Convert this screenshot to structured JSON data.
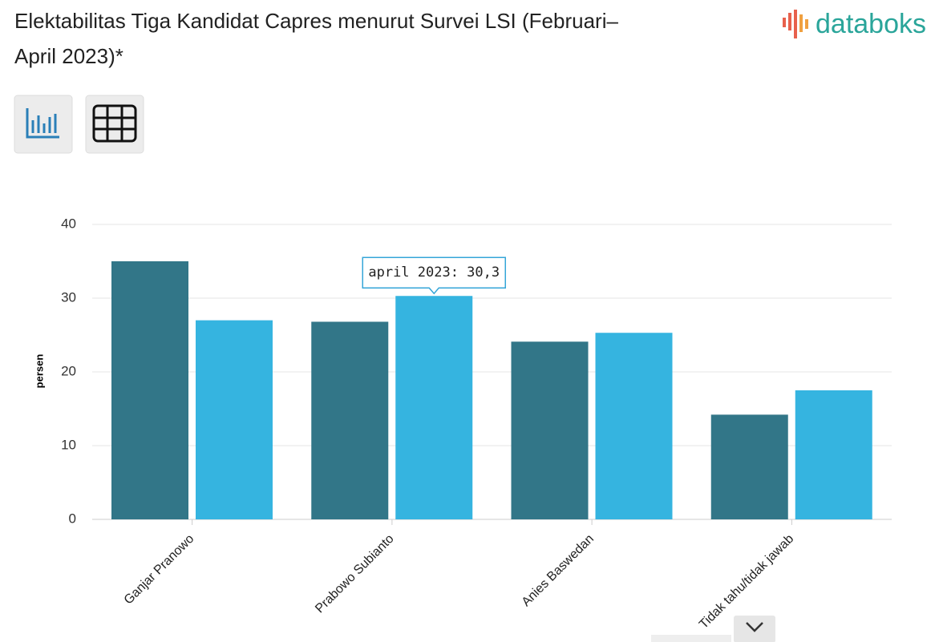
{
  "chart_data": {
    "type": "bar",
    "title_line1": "Elektabilitas Tiga Kandidat Capres menurut Survei LSI (Februari–",
    "title_line2": "April 2023)*",
    "logo": "databoks",
    "ylabel": "persen",
    "categories": [
      "Ganjar Pranowo",
      "Prabowo Subianto",
      "Anies Baswedan",
      "Tidak tahu/tidak jawab"
    ],
    "series": [
      {
        "color": "#327688",
        "values": [
          35,
          26.8,
          24.1,
          14.2
        ]
      },
      {
        "color": "#35b4e0",
        "values": [
          27,
          30.3,
          25.3,
          17.5
        ]
      }
    ],
    "tooltip": "april 2023: 30,3",
    "ylim": [
      0,
      40
    ],
    "yticks": [
      0,
      10,
      20,
      30,
      40
    ],
    "grid": true
  }
}
